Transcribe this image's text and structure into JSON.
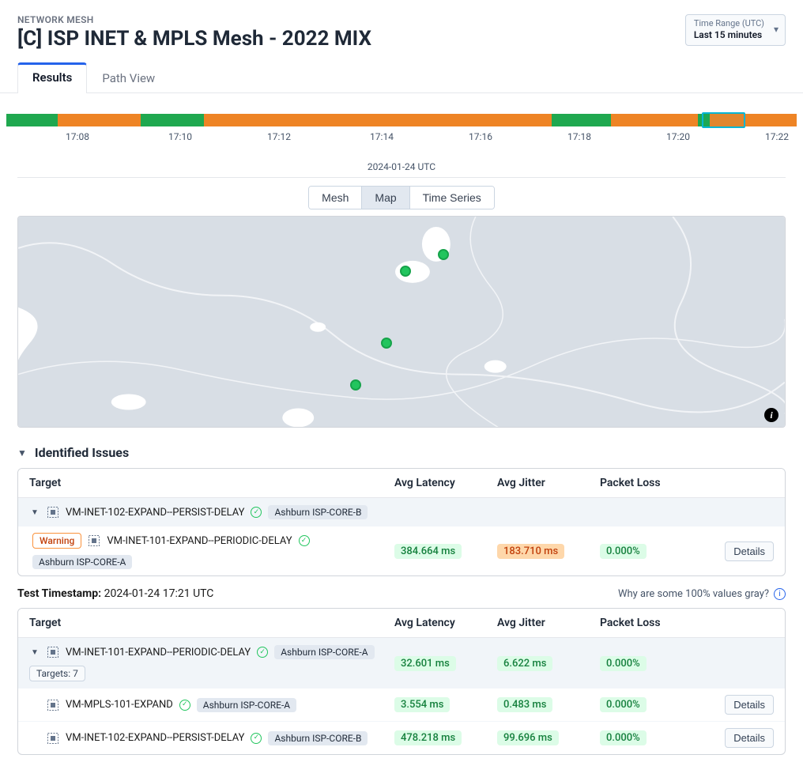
{
  "header": {
    "breadcrumb": "NETWORK MESH",
    "title": "[C] ISP INET & MPLS Mesh - 2022 MIX",
    "time_range_label": "Time Range (UTC)",
    "time_range_value": "Last 15 minutes"
  },
  "tabs": {
    "results": "Results",
    "path_view": "Path View"
  },
  "timeline": {
    "segments": [
      {
        "color": "#1fa84f",
        "width_pct": 6.5
      },
      {
        "color": "#ee8425",
        "width_pct": 10.5
      },
      {
        "color": "#1fa84f",
        "width_pct": 8.0
      },
      {
        "color": "#ee8425",
        "width_pct": 44.0
      },
      {
        "color": "#1fa84f",
        "width_pct": 7.5
      },
      {
        "color": "#ee8425",
        "width_pct": 11.0
      },
      {
        "color": "#1fa84f",
        "width_pct": 1.5
      },
      {
        "color": "#ee8425",
        "width_pct": 11.0
      }
    ],
    "cursor": {
      "left_pct": 88.0,
      "width_pct": 5.5
    },
    "ticks": [
      {
        "label": "17:08",
        "left_pct": 9.0
      },
      {
        "label": "17:10",
        "left_pct": 22.0
      },
      {
        "label": "17:12",
        "left_pct": 34.5
      },
      {
        "label": "17:14",
        "left_pct": 47.5
      },
      {
        "label": "17:16",
        "left_pct": 60.0
      },
      {
        "label": "17:18",
        "left_pct": 72.5
      },
      {
        "label": "17:20",
        "left_pct": 85.0
      },
      {
        "label": "17:22",
        "left_pct": 97.5
      }
    ],
    "date_label": "2024-01-24 UTC"
  },
  "view_toggle": {
    "mesh": "Mesh",
    "map": "Map",
    "time_series": "Time Series",
    "active": "map"
  },
  "map": {
    "background_color": "#d8dee5",
    "dots": [
      {
        "left_pct": 55.5,
        "top_pct": 18.0
      },
      {
        "left_pct": 50.5,
        "top_pct": 26.0
      },
      {
        "left_pct": 48.0,
        "top_pct": 60.0
      },
      {
        "left_pct": 44.0,
        "top_pct": 80.0
      }
    ],
    "lake_color": "#ffffff",
    "road_color": "#f2f4f7"
  },
  "issues": {
    "title": "Identified Issues",
    "columns": {
      "target": "Target",
      "latency": "Avg Latency",
      "jitter": "Avg Jitter",
      "loss": "Packet Loss"
    },
    "group": {
      "name": "VM-INET-102-EXPAND--PERSIST-DELAY",
      "location": "Ashburn ISP-CORE-B"
    },
    "row": {
      "severity": "Warning",
      "name": "VM-INET-101-EXPAND--PERIODIC-DELAY",
      "location": "Ashburn ISP-CORE-A",
      "latency": "384.664 ms",
      "jitter": "183.710 ms",
      "loss": "0.000%",
      "details": "Details"
    }
  },
  "timestamp": {
    "label": "Test Timestamp:",
    "value": "2024-01-24 17:21 UTC",
    "help": "Why are some 100% values gray?"
  },
  "results_table": {
    "columns": {
      "target": "Target",
      "latency": "Avg Latency",
      "jitter": "Avg Jitter",
      "loss": "Packet Loss"
    },
    "group": {
      "name": "VM-INET-101-EXPAND--PERIODIC-DELAY",
      "location": "Ashburn ISP-CORE-A",
      "targets_label": "Targets: 7",
      "latency": "32.601 ms",
      "jitter": "6.622 ms",
      "loss": "0.000%"
    },
    "rows": [
      {
        "name": "VM-MPLS-101-EXPAND",
        "location": "Ashburn ISP-CORE-A",
        "latency": "3.554 ms",
        "jitter": "0.483 ms",
        "loss": "0.000%",
        "details": "Details"
      },
      {
        "name": "VM-INET-102-EXPAND--PERSIST-DELAY",
        "location": "Ashburn ISP-CORE-B",
        "latency": "478.218 ms",
        "jitter": "99.696 ms",
        "loss": "0.000%",
        "details": "Details"
      }
    ]
  }
}
